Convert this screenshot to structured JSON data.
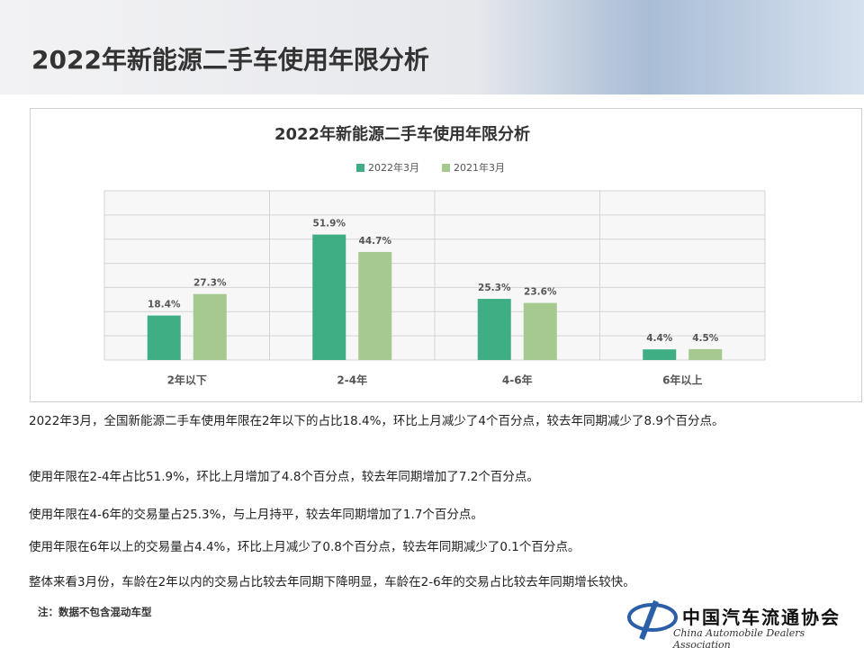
{
  "header": {
    "title": "2022年新能源二手车使用年限分析"
  },
  "chart_data": {
    "type": "bar",
    "title": "2022年新能源二手车使用年限分析",
    "categories": [
      "2年以下",
      "2-4年",
      "4-6年",
      "6年以上"
    ],
    "series": [
      {
        "name": "2022年3月",
        "color": "#3fae85",
        "values": [
          18.4,
          51.9,
          25.3,
          4.4
        ],
        "value_labels": [
          "18.4%",
          "51.9%",
          "25.3%",
          "4.4%"
        ]
      },
      {
        "name": "2021年3月",
        "color": "#a5c98f",
        "values": [
          27.3,
          44.7,
          23.6,
          4.5
        ],
        "value_labels": [
          "27.3%",
          "44.7%",
          "23.6%",
          "4.5%"
        ]
      }
    ],
    "ylim": [
      0,
      70
    ],
    "yticks": [
      0,
      10,
      20,
      30,
      40,
      50,
      60,
      70
    ],
    "grid": true,
    "legend": "top"
  },
  "paragraphs": [
    "2022年3月，全国新能源二手车使用年限在2年以下的占比18.4%，环比上月减少了4个百分点，较去年同期减少了8.9个百分点。",
    "使用年限在2-4年占比51.9%，环比上月增加了4.8个百分点，较去年同期增加了7.2个百分点。",
    "使用年限在4-6年的交易量占25.3%，与上月持平，较去年同期增加了1.7个百分点。",
    "使用年限在6年以上的交易量占4.4%，环比上月减少了0.8个百分点，较去年同期减少了0.1个百分点。",
    "整体来看3月份，车龄在2年以内的交易占比较去年同期下降明显，车龄在2-6年的交易占比较去年同期增长较快。"
  ],
  "note": "注：数据不包含混动车型",
  "logo": {
    "name": "中国汽车流通协会",
    "english": "China Automobile Dealers Association"
  }
}
